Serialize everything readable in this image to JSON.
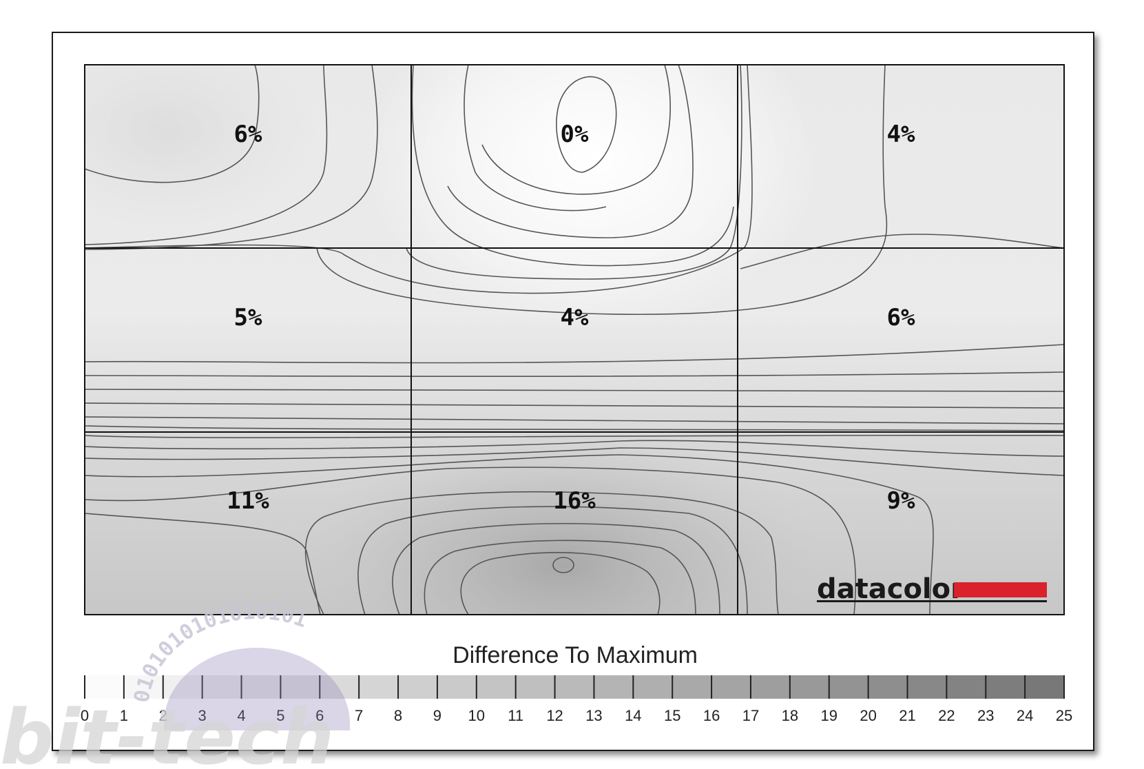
{
  "chart_data": {
    "type": "heatmap",
    "rows": 3,
    "columns": 3,
    "values": [
      [
        6,
        0,
        4
      ],
      [
        5,
        4,
        6
      ],
      [
        11,
        16,
        9
      ]
    ],
    "cell_labels": [
      [
        "6%",
        "0%",
        "4%"
      ],
      [
        "5%",
        "4%",
        "6%"
      ],
      [
        "11%",
        "16%",
        "9%"
      ]
    ],
    "unit": "%",
    "colorbar": {
      "title": "Difference To Maximum",
      "min": 0,
      "max": 25,
      "ticks": [
        "0",
        "1",
        "2",
        "3",
        "4",
        "5",
        "6",
        "7",
        "8",
        "9",
        "10",
        "11",
        "12",
        "13",
        "14",
        "15",
        "16",
        "17",
        "18",
        "19",
        "20",
        "21",
        "22",
        "23",
        "24",
        "25"
      ]
    }
  },
  "logo": {
    "text": "datacolor",
    "accent_color": "#d9222c"
  },
  "watermark": {
    "text": "bit-tech",
    "ring": "0101010101010101"
  },
  "colors": {
    "background": "#ffffff",
    "frame": "#1a1a1a",
    "contour": "#555555",
    "scale_low": "#fbfbfb",
    "scale_high": "#787878"
  }
}
